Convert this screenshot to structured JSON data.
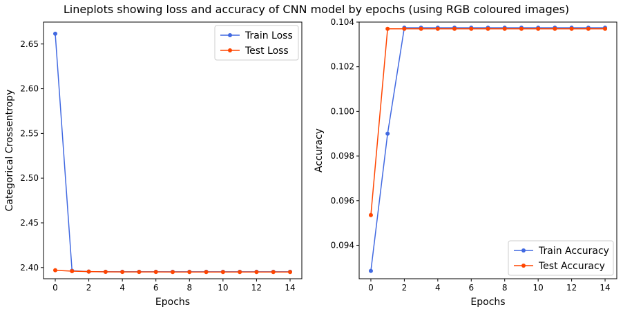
{
  "figure": {
    "title": "Lineplots showing loss and accuracy of CNN model by epochs (using RGB coloured images)"
  },
  "colors": {
    "train": "#4169e1",
    "test": "#ff4500"
  },
  "chart_data": [
    {
      "type": "line",
      "xlabel": "Epochs",
      "ylabel": "Categorical Crossentropy",
      "xlim": [
        -0.7,
        14.7
      ],
      "ylim": [
        2.3875,
        2.6745
      ],
      "xticks": [
        0,
        2,
        4,
        6,
        8,
        10,
        12,
        14
      ],
      "yticks": [
        2.4,
        2.45,
        2.5,
        2.55,
        2.6,
        2.65
      ],
      "ytick_labels": [
        "2.40",
        "2.45",
        "2.50",
        "2.55",
        "2.60",
        "2.65"
      ],
      "legend_position": "top-right",
      "grid": false,
      "x": [
        0,
        1,
        2,
        3,
        4,
        5,
        6,
        7,
        8,
        9,
        10,
        11,
        12,
        13,
        14
      ],
      "series": [
        {
          "name": "Train Loss",
          "color": "#4169e1",
          "values": [
            2.6615,
            2.3965,
            2.3955,
            2.3953,
            2.3953,
            2.3953,
            2.3953,
            2.3953,
            2.3953,
            2.3953,
            2.3953,
            2.3953,
            2.3953,
            2.3953,
            2.3953
          ]
        },
        {
          "name": "Test Loss",
          "color": "#ff4500",
          "values": [
            2.397,
            2.396,
            2.3955,
            2.3952,
            2.3951,
            2.3951,
            2.3951,
            2.395,
            2.395,
            2.395,
            2.395,
            2.395,
            2.395,
            2.395,
            2.395
          ]
        }
      ]
    },
    {
      "type": "line",
      "xlabel": "Epochs",
      "ylabel": "Accuracy",
      "xlim": [
        -0.7,
        14.7
      ],
      "ylim": [
        0.0925,
        0.104
      ],
      "xticks": [
        0,
        2,
        4,
        6,
        8,
        10,
        12,
        14
      ],
      "yticks": [
        0.094,
        0.096,
        0.098,
        0.1,
        0.102,
        0.104
      ],
      "ytick_labels": [
        "0.094",
        "0.096",
        "0.098",
        "0.100",
        "0.102",
        "0.104"
      ],
      "legend_position": "bottom-right",
      "grid": false,
      "x": [
        0,
        1,
        2,
        3,
        4,
        5,
        6,
        7,
        8,
        9,
        10,
        11,
        12,
        13,
        14
      ],
      "series": [
        {
          "name": "Train Accuracy",
          "color": "#4169e1",
          "values": [
            0.09285,
            0.099,
            0.10375,
            0.10375,
            0.10375,
            0.10375,
            0.10375,
            0.10375,
            0.10375,
            0.10375,
            0.10375,
            0.10375,
            0.10375,
            0.10375,
            0.10375
          ]
        },
        {
          "name": "Test Accuracy",
          "color": "#ff4500",
          "values": [
            0.09535,
            0.1037,
            0.1037,
            0.1037,
            0.1037,
            0.1037,
            0.1037,
            0.1037,
            0.1037,
            0.1037,
            0.1037,
            0.1037,
            0.1037,
            0.1037,
            0.1037
          ]
        }
      ]
    }
  ]
}
